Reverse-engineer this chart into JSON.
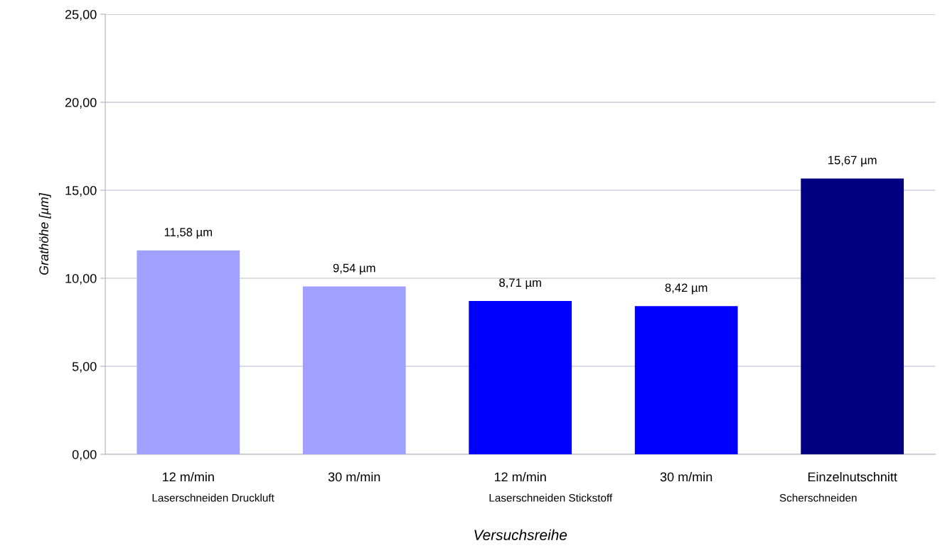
{
  "chart_data": {
    "type": "bar",
    "xlabel": "Versuchsreihe",
    "ylabel": "Grathöhe [µm]",
    "categories": [
      "12 m/min",
      "30 m/min",
      "12 m/min",
      "30 m/min",
      "Einzelnutschnitt"
    ],
    "values": [
      11.58,
      9.54,
      8.71,
      8.42,
      15.67
    ],
    "colors": [
      "#a0a0ff",
      "#a0a0ff",
      "#0000ff",
      "#0000ff",
      "#000080"
    ],
    "value_labels": [
      "11,58 µm",
      "9,54 µm",
      "8,71 µm",
      "8,42 µm",
      "15,67 µm"
    ],
    "annotations": [
      "Laserschneiden Druckluft",
      "Laserschneiden Stickstoff",
      "Scherschneiden"
    ],
    "ylim": [
      0,
      25
    ],
    "yticks": [
      {
        "value": 0,
        "label": "0,00"
      },
      {
        "value": 5,
        "label": "5,00"
      },
      {
        "value": 10,
        "label": "10,00"
      },
      {
        "value": 15,
        "label": "15,00"
      },
      {
        "value": 20,
        "label": "20,00"
      },
      {
        "value": 25,
        "label": "25,00"
      }
    ],
    "grid": "y",
    "legend": false
  }
}
